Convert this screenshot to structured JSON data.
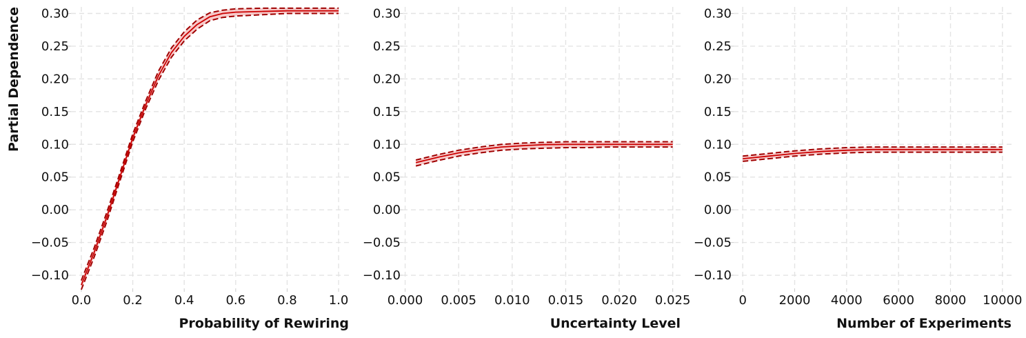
{
  "chart_data": [
    {
      "type": "line",
      "xlabel": "Probability of Rewiring",
      "ylabel": "Partial Dependence",
      "xlim": [
        -0.04,
        1.04
      ],
      "ylim": [
        -0.12,
        0.31
      ],
      "xticks": [
        0.0,
        0.2,
        0.4,
        0.6,
        0.8,
        1.0
      ],
      "xtick_labels": [
        "0.0",
        "0.2",
        "0.4",
        "0.6",
        "0.8",
        "1.0"
      ],
      "yticks": [
        -0.1,
        -0.05,
        0.0,
        0.05,
        0.1,
        0.15,
        0.2,
        0.25,
        0.3
      ],
      "ytick_labels": [
        "−0.10",
        "−0.05",
        "0.00",
        "0.05",
        "0.10",
        "0.15",
        "0.20",
        "0.25",
        "0.30"
      ],
      "grid": true,
      "x": [
        0.0,
        0.05,
        0.1,
        0.15,
        0.2,
        0.25,
        0.3,
        0.35,
        0.4,
        0.45,
        0.5,
        0.55,
        0.6,
        0.7,
        0.8,
        0.9,
        1.0
      ],
      "mean": [
        -0.115,
        -0.065,
        -0.01,
        0.05,
        0.11,
        0.16,
        0.205,
        0.24,
        0.265,
        0.283,
        0.295,
        0.3,
        0.302,
        0.303,
        0.304,
        0.304,
        0.304
      ],
      "upper": [
        -0.108,
        -0.058,
        -0.003,
        0.056,
        0.116,
        0.166,
        0.212,
        0.247,
        0.272,
        0.29,
        0.301,
        0.305,
        0.307,
        0.308,
        0.308,
        0.308,
        0.308
      ],
      "lower": [
        -0.122,
        -0.072,
        -0.017,
        0.044,
        0.104,
        0.154,
        0.198,
        0.233,
        0.258,
        0.276,
        0.289,
        0.294,
        0.296,
        0.298,
        0.3,
        0.3,
        0.3
      ]
    },
    {
      "type": "line",
      "xlabel": "Uncertainty Level",
      "ylabel": "",
      "xlim": [
        -0.00023,
        0.02573
      ],
      "ylim": [
        -0.12,
        0.31
      ],
      "xticks": [
        0.0,
        0.005,
        0.01,
        0.015,
        0.02,
        0.025
      ],
      "xtick_labels": [
        "0.000",
        "0.005",
        "0.010",
        "0.015",
        "0.020",
        "0.025"
      ],
      "yticks": [
        -0.1,
        -0.05,
        0.0,
        0.05,
        0.1,
        0.15,
        0.2,
        0.25,
        0.3
      ],
      "ytick_labels": [
        "−0.10",
        "−0.05",
        "0.00",
        "0.05",
        "0.10",
        "0.15",
        "0.20",
        "0.25",
        "0.30"
      ],
      "grid": true,
      "x": [
        0.001,
        0.003,
        0.005,
        0.007,
        0.009,
        0.011,
        0.013,
        0.015,
        0.017,
        0.019,
        0.021,
        0.023,
        0.025
      ],
      "mean": [
        0.072,
        0.08,
        0.087,
        0.092,
        0.096,
        0.098,
        0.0995,
        0.1,
        0.1,
        0.1,
        0.1,
        0.1,
        0.1
      ],
      "upper": [
        0.076,
        0.084,
        0.091,
        0.096,
        0.1,
        0.102,
        0.103,
        0.104,
        0.104,
        0.104,
        0.104,
        0.104,
        0.104
      ],
      "lower": [
        0.067,
        0.075,
        0.082,
        0.087,
        0.091,
        0.093,
        0.094,
        0.095,
        0.095,
        0.096,
        0.096,
        0.096,
        0.096
      ]
    },
    {
      "type": "line",
      "xlabel": "Number of Experiments",
      "ylabel": "",
      "xlim": [
        -350,
        10350
      ],
      "ylim": [
        -0.12,
        0.31
      ],
      "xticks": [
        0,
        2000,
        4000,
        6000,
        8000,
        10000
      ],
      "xtick_labels": [
        "0",
        "2000",
        "4000",
        "6000",
        "8000",
        "10000"
      ],
      "yticks": [
        -0.1,
        -0.05,
        0.0,
        0.05,
        0.1,
        0.15,
        0.2,
        0.25,
        0.3
      ],
      "ytick_labels": [
        "−0.10",
        "−0.05",
        "0.00",
        "0.05",
        "0.10",
        "0.15",
        "0.20",
        "0.25",
        "0.30"
      ],
      "grid": true,
      "x": [
        0,
        1000,
        2000,
        3000,
        4000,
        5000,
        6000,
        7000,
        8000,
        9000,
        10000
      ],
      "mean": [
        0.078,
        0.082,
        0.086,
        0.089,
        0.091,
        0.092,
        0.092,
        0.092,
        0.092,
        0.092,
        0.092
      ],
      "upper": [
        0.082,
        0.086,
        0.09,
        0.093,
        0.095,
        0.096,
        0.096,
        0.096,
        0.096,
        0.096,
        0.096
      ],
      "lower": [
        0.074,
        0.078,
        0.082,
        0.085,
        0.087,
        0.088,
        0.088,
        0.088,
        0.088,
        0.088,
        0.088
      ]
    }
  ],
  "colors": {
    "mean_line": "#cc0000",
    "bound_line": "#a00000",
    "band_fill": "#f4b8b8",
    "grid": "#e3e3e3",
    "text": "#111111"
  }
}
